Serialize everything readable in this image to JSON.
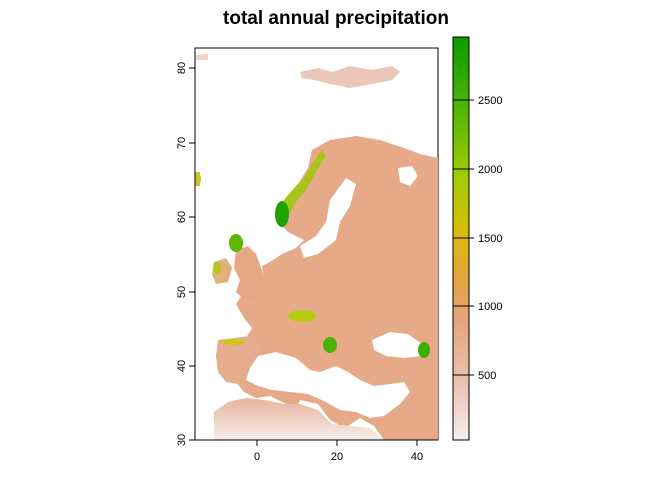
{
  "title": "total annual precipitation",
  "map": {
    "lon_range": [
      -15,
      45
    ],
    "lat_range": [
      30,
      84
    ],
    "x_ticks": [
      0,
      20,
      40
    ],
    "y_ticks": [
      30,
      40,
      50,
      60,
      70,
      80
    ],
    "region": "Europe"
  },
  "legend": {
    "range": [
      0,
      2950
    ],
    "ticks": [
      500,
      1000,
      1500,
      2000,
      2500
    ],
    "colors": [
      "#f5eeee",
      "#e9b39a",
      "#e3a56e",
      "#d9b21a",
      "#a6cc06",
      "#5ab800",
      "#1a9f00"
    ]
  }
}
